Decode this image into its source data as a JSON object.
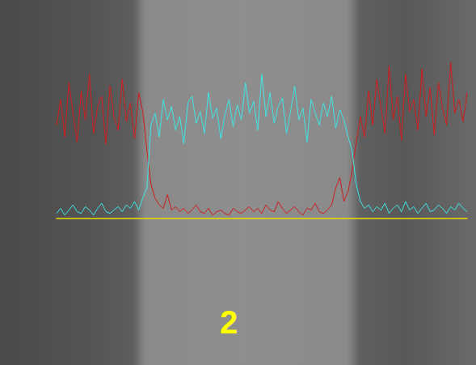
{
  "chart_data": {
    "type": "line",
    "x": [
      0,
      1,
      2,
      3,
      4,
      5,
      6,
      7,
      8,
      9,
      10,
      11,
      12,
      13,
      14,
      15,
      16,
      17,
      18,
      19,
      20,
      21,
      22,
      23,
      24,
      25,
      26,
      27,
      28,
      29,
      30,
      31,
      32,
      33,
      34,
      35,
      36,
      37,
      38,
      39,
      40,
      41,
      42,
      43,
      44,
      45,
      46,
      47,
      48,
      49,
      50,
      51,
      52,
      53,
      54,
      55,
      56,
      57,
      58,
      59,
      60,
      61,
      62,
      63,
      64,
      65,
      66,
      67,
      68,
      69,
      70,
      71,
      72,
      73,
      74,
      75,
      76,
      77,
      78,
      79,
      80,
      81,
      82,
      83,
      84,
      85,
      86,
      87,
      88,
      89,
      90,
      91,
      92,
      93,
      94,
      95,
      96,
      97,
      98,
      99,
      100
    ],
    "series": [
      {
        "color": "#d01c1c",
        "values": [
          55,
          70,
          48,
          80,
          62,
          45,
          75,
          58,
          85,
          50,
          66,
          72,
          44,
          78,
          60,
          52,
          82,
          57,
          68,
          47,
          74,
          63,
          40,
          20,
          12,
          8,
          6,
          14,
          5,
          7,
          4,
          6,
          3,
          5,
          8,
          4,
          3,
          6,
          2,
          4,
          5,
          3,
          2,
          6,
          4,
          3,
          5,
          7,
          4,
          6,
          3,
          8,
          5,
          4,
          10,
          6,
          3,
          5,
          7,
          4,
          2,
          6,
          5,
          9,
          4,
          3,
          5,
          8,
          18,
          24,
          10,
          16,
          28,
          45,
          60,
          48,
          75,
          55,
          82,
          66,
          50,
          90,
          58,
          72,
          46,
          85,
          63,
          70,
          52,
          88,
          60,
          77,
          49,
          80,
          65,
          55,
          92,
          62,
          70,
          57,
          74
        ]
      },
      {
        "color": "#3fe6e6",
        "values": [
          3,
          6,
          2,
          5,
          8,
          4,
          3,
          7,
          5,
          2,
          6,
          9,
          4,
          3,
          5,
          7,
          4,
          8,
          6,
          10,
          5,
          12,
          18,
          55,
          62,
          48,
          70,
          58,
          66,
          52,
          60,
          44,
          68,
          72,
          56,
          63,
          50,
          74,
          59,
          65,
          47,
          61,
          70,
          54,
          67,
          58,
          80,
          62,
          69,
          52,
          85,
          60,
          74,
          56,
          66,
          71,
          50,
          63,
          78,
          58,
          65,
          45,
          70,
          62,
          55,
          68,
          60,
          72,
          53,
          64,
          58,
          48,
          40,
          20,
          10,
          6,
          8,
          4,
          7,
          5,
          9,
          3,
          6,
          8,
          4,
          10,
          5,
          7,
          3,
          6,
          9,
          4,
          5,
          8,
          6,
          3,
          7,
          5,
          9,
          6,
          4
        ]
      }
    ],
    "xlim": [
      0,
      100
    ],
    "ylim": [
      0,
      100
    ],
    "tick_labels": false,
    "grid": false,
    "annotations": [
      "2"
    ]
  }
}
